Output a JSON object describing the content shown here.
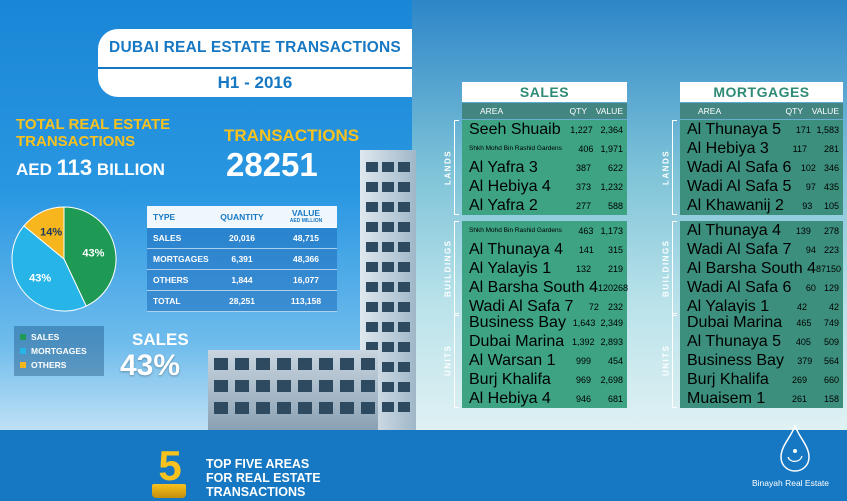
{
  "header": {
    "title": "DUBAI REAL ESTATE TRANSACTIONS",
    "period": "H1 - 2016"
  },
  "totals": {
    "label": "TOTAL REAL ESTATE TRANSACTIONS",
    "currency": "AED",
    "amount": "113",
    "unit": "BILLION",
    "tx_label": "TRANSACTIONS",
    "tx_value": "28251"
  },
  "pie": {
    "slices": [
      {
        "name": "SALES",
        "label": "43%",
        "value": 43,
        "color": "#1f9a55"
      },
      {
        "name": "MORTGAGES",
        "label": "43%",
        "value": 43,
        "color": "#27b5e8"
      },
      {
        "name": "OTHERS",
        "label": "14%",
        "value": 14,
        "color": "#f7b51e"
      }
    ]
  },
  "legend": [
    {
      "label": "SALES",
      "color": "#1f9a55"
    },
    {
      "label": "MORTGAGES",
      "color": "#27b5e8"
    },
    {
      "label": "OTHERS",
      "color": "#f7b51e"
    }
  ],
  "summary": {
    "headers": {
      "type": "TYPE",
      "quantity": "QUANTITY",
      "value": "VALUE",
      "value_unit": "AED MILLION"
    },
    "rows": [
      {
        "type": "SALES",
        "quantity": "20,016",
        "value": "48,715"
      },
      {
        "type": "MORTGAGES",
        "quantity": "6,391",
        "value": "48,366"
      },
      {
        "type": "OTHERS",
        "quantity": "1,844",
        "value": "16,077"
      },
      {
        "type": "TOTAL",
        "quantity": "28,251",
        "value": "113,158"
      }
    ]
  },
  "sales_callout": {
    "label": "SALES",
    "value": "43%"
  },
  "columns": {
    "sales": {
      "title": "SALES",
      "headers": {
        "area": "AREA",
        "qty": "QTY",
        "value": "VALUE"
      },
      "groups": [
        {
          "name": "LANDS",
          "rows": [
            {
              "area": "Seeh Shuaib",
              "qty": "1,227",
              "value": "2,364"
            },
            {
              "area": "Shkh Mohd Bin Rashid Gardens",
              "qty": "406",
              "value": "1,971"
            },
            {
              "area": "Al Yafra 3",
              "qty": "387",
              "value": "622"
            },
            {
              "area": "Al Hebiya 4",
              "qty": "373",
              "value": "1,232"
            },
            {
              "area": "Al Yafra 2",
              "qty": "277",
              "value": "588"
            }
          ]
        },
        {
          "name": "BUILDINGS",
          "rows": [
            {
              "area": "Shkh Mohd Bin Rashid Gardens",
              "qty": "463",
              "value": "1,173"
            },
            {
              "area": "Al Thunaya 4",
              "qty": "141",
              "value": "315"
            },
            {
              "area": "Al Yalayis 1",
              "qty": "132",
              "value": "219"
            },
            {
              "area": "Al Barsha South 4",
              "qty": "120",
              "value": "268"
            },
            {
              "area": "Wadi Al Safa 7",
              "qty": "72",
              "value": "232"
            }
          ]
        },
        {
          "name": "UNITS",
          "rows": [
            {
              "area": "Business Bay",
              "qty": "1,643",
              "value": "2,349"
            },
            {
              "area": "Dubai Marina",
              "qty": "1,392",
              "value": "2,893"
            },
            {
              "area": "Al Warsan 1",
              "qty": "999",
              "value": "454"
            },
            {
              "area": "Burj Khalifa",
              "qty": "969",
              "value": "2,698"
            },
            {
              "area": "Al Hebiya 4",
              "qty": "946",
              "value": "681"
            }
          ]
        }
      ]
    },
    "mortgages": {
      "title": "MORTGAGES",
      "headers": {
        "area": "AREA",
        "qty": "QTY",
        "value": "VALUE"
      },
      "groups": [
        {
          "name": "LANDS",
          "rows": [
            {
              "area": "Al Thunaya 5",
              "qty": "171",
              "value": "1,583"
            },
            {
              "area": "Al Hebiya 3",
              "qty": "117",
              "value": "281"
            },
            {
              "area": "Wadi Al Safa 6",
              "qty": "102",
              "value": "346"
            },
            {
              "area": "Wadi Al Safa 5",
              "qty": "97",
              "value": "435"
            },
            {
              "area": "Al Khawanij 2",
              "qty": "93",
              "value": "105"
            }
          ]
        },
        {
          "name": "BUILDINGS",
          "rows": [
            {
              "area": "Al Thunaya 4",
              "qty": "139",
              "value": "278"
            },
            {
              "area": "Wadi Al Safa 7",
              "qty": "94",
              "value": "223"
            },
            {
              "area": "Al Barsha South 4",
              "qty": "87",
              "value": "150"
            },
            {
              "area": "Wadi Al Safa 6",
              "qty": "60",
              "value": "129"
            },
            {
              "area": "Al Yalayis 1",
              "qty": "42",
              "value": "42"
            }
          ]
        },
        {
          "name": "UNITS",
          "rows": [
            {
              "area": "Dubai Marina",
              "qty": "465",
              "value": "749"
            },
            {
              "area": "Al Thunaya 5",
              "qty": "405",
              "value": "509"
            },
            {
              "area": "Business Bay",
              "qty": "379",
              "value": "564"
            },
            {
              "area": "Burj Khalifa",
              "qty": "269",
              "value": "660"
            },
            {
              "area": "Muaisem 1",
              "qty": "261",
              "value": "158"
            }
          ]
        }
      ]
    }
  },
  "footer": {
    "number": "5",
    "line1": "TOP FIVE AREAS",
    "line2": "FOR REAL ESTATE",
    "line3": "TRANSACTIONS",
    "brand": "Binayah Real Estate"
  }
}
